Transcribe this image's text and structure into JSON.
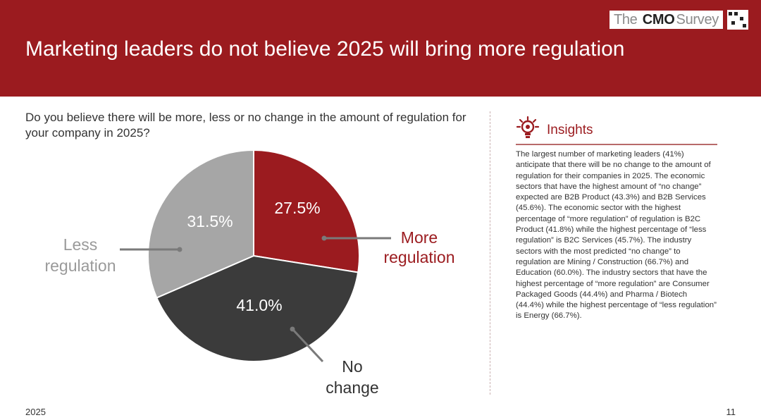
{
  "brand": {
    "prefix": "The",
    "name": "CMO",
    "suffix": "Survey"
  },
  "title": "Marketing leaders do not believe 2025 will bring more regulation",
  "question": "Do you believe there will be more, less or no change in the amount of regulation for your company in 2025?",
  "insights": {
    "title": "Insights",
    "body": "The largest number of marketing leaders (41%) anticipate that there will be no change to the amount of regulation for their companies in 2025. The economic sectors that have the highest amount of “no change” expected are B2B Product (43.3%) and B2B Services (45.6%). The economic sector with the highest percentage of “more regulation” of regulation is B2C Product (41.8%) while the highest percentage of “less regulation” is B2C Services (45.7%). The industry sectors with the most predicted “no change” to regulation are Mining / Construction (66.7%) and Education (60.0%). The industry sectors that have the highest percentage of “more regulation” are Consumer Packaged Goods (44.4%) and Pharma / Biotech (44.4%) while the highest percentage of “less regulation” is Energy (66.7%)."
  },
  "colors": {
    "header": "#9b1b1f",
    "more": "#9b1b1f",
    "no_change": "#3b3b3b",
    "less": "#a6a6a6",
    "less_label": "#9a9a9a",
    "leader": "#7a7a7a"
  },
  "chart_data": {
    "type": "pie",
    "title": "Do you believe there will be more, less or no change in the amount of regulation for your company in 2025?",
    "start_angle_deg": 0,
    "direction": "clockwise",
    "slices": [
      {
        "key": "more",
        "label_lines": [
          "More",
          "regulation"
        ],
        "value": 27.5,
        "value_label": "27.5%"
      },
      {
        "key": "no_change",
        "label_lines": [
          "No",
          "change"
        ],
        "value": 41.0,
        "value_label": "41.0%"
      },
      {
        "key": "less",
        "label_lines": [
          "Less",
          "regulation"
        ],
        "value": 31.5,
        "value_label": "31.5%"
      }
    ]
  },
  "footer": {
    "year": "2025",
    "page": "11"
  }
}
